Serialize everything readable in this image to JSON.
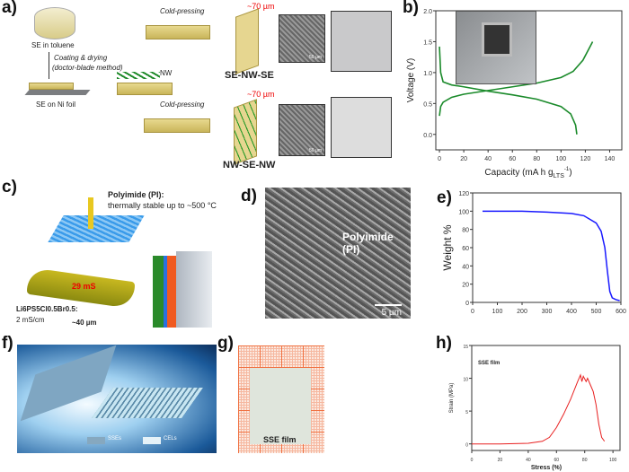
{
  "panels": {
    "a": {
      "label": "a)",
      "se_toluene": "SE in toluene",
      "coating": "Coating & drying",
      "method": "(doctor-blade method)",
      "se_ni": "SE on Ni foil",
      "nw": "NW",
      "cold1": "Cold-pressing",
      "cold2": "Cold-pressing",
      "thick1": "~70 µm",
      "thick2": "~70 µm",
      "name1": "SE-NW-SE",
      "name2": "NW-SE-NW",
      "scale1": "50 µm",
      "scale2": "50 µm"
    },
    "b": {
      "label": "b)"
    },
    "c": {
      "label": "c)",
      "pi_title": "Polyimide (PI):",
      "pi_desc": "thermally stable up to ~500 °C",
      "cond": "29 mS",
      "formula": "Li6PS5Cl0.5Br0.5:",
      "formula_cond": "2 mS/cm",
      "thickness": "~40 µm"
    },
    "d": {
      "label": "d)",
      "text": "Polyimide (PI)",
      "scale": "5 µm"
    },
    "e": {
      "label": "e)"
    },
    "f": {
      "label": "f)",
      "legend1": "SSEs",
      "legend2": "CELs"
    },
    "g": {
      "label": "g)",
      "text": "SSE film"
    },
    "h": {
      "label": "h)"
    }
  },
  "colors": {
    "b_line": "#1a8a2a",
    "e_line": "#1a1aff",
    "h_line": "#e82020",
    "red_text": "#e00000"
  },
  "chart_data": [
    {
      "panel": "b",
      "type": "line",
      "xlabel": "Capacity (mA h g",
      "xlabel_sub": "LTS",
      "xlabel_sup": "-1",
      "xlabel_end": ")",
      "ylabel": "Voltage (V)",
      "xlim": [
        -3,
        150
      ],
      "ylim": [
        -0.25,
        2.0
      ],
      "xticks": [
        0,
        20,
        40,
        60,
        80,
        100,
        120,
        140
      ],
      "yticks": [
        0.0,
        0.5,
        1.0,
        1.5,
        2.0
      ],
      "ytick_labels": [
        "0.0",
        "0.5",
        "1.0",
        "1.5",
        "2.0"
      ],
      "series": [
        {
          "x": [
            0,
            1,
            3,
            10,
            20,
            40,
            60,
            80,
            100,
            110,
            118,
            126
          ],
          "y": [
            0.3,
            0.45,
            0.52,
            0.6,
            0.65,
            0.71,
            0.77,
            0.83,
            0.92,
            1.02,
            1.2,
            1.5
          ]
        },
        {
          "x": [
            0,
            1,
            3,
            10,
            20,
            40,
            60,
            80,
            100,
            108,
            112,
            113
          ],
          "y": [
            1.42,
            1.0,
            0.85,
            0.8,
            0.77,
            0.7,
            0.64,
            0.57,
            0.45,
            0.33,
            0.15,
            0.0
          ]
        }
      ]
    },
    {
      "panel": "e",
      "type": "line",
      "xlabel": "",
      "ylabel": "Weight %",
      "xlim": [
        0,
        600
      ],
      "ylim": [
        0,
        120
      ],
      "xticks": [
        0,
        100,
        200,
        300,
        400,
        500,
        600
      ],
      "yticks": [
        0,
        20,
        40,
        60,
        80,
        100,
        120
      ],
      "series": [
        {
          "x": [
            40,
            200,
            300,
            400,
            450,
            500,
            520,
            535,
            545,
            555,
            565,
            580,
            595
          ],
          "y": [
            100,
            100,
            99,
            97.5,
            95,
            87,
            78,
            60,
            35,
            12,
            5,
            3,
            2
          ]
        }
      ]
    },
    {
      "panel": "h",
      "type": "line",
      "xlabel": "Stress (%)",
      "ylabel": "Strain (MPa)",
      "annotation": "SSE film",
      "xlim": [
        0,
        105
      ],
      "ylim": [
        -1,
        15
      ],
      "xticks": [
        0,
        20,
        40,
        60,
        80,
        100
      ],
      "yticks": [
        0,
        5,
        10,
        15
      ],
      "series": [
        {
          "x": [
            0,
            20,
            40,
            50,
            55,
            60,
            65,
            70,
            75,
            77,
            78,
            79,
            81,
            82,
            84,
            86,
            88,
            90,
            92,
            94
          ],
          "y": [
            0,
            0,
            0.1,
            0.4,
            1,
            2.5,
            4.5,
            6.8,
            9.5,
            10.5,
            9.5,
            10.3,
            9.5,
            10,
            9,
            8,
            6,
            3,
            1,
            0.4
          ]
        }
      ]
    }
  ]
}
